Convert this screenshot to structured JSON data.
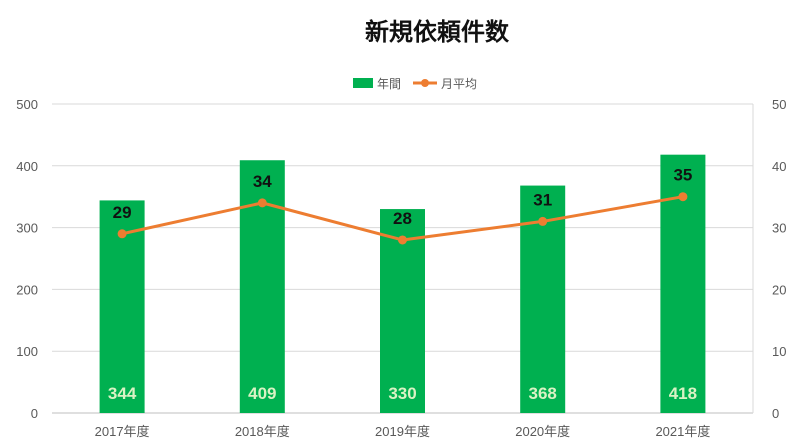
{
  "chart_data": {
    "type": "bar",
    "title": "新規依頼件数",
    "categories": [
      "2017年度",
      "2018年度",
      "2019年度",
      "2020年度",
      "2021年度"
    ],
    "series": [
      {
        "name": "年間",
        "type": "bar",
        "axis": "left",
        "values": [
          344,
          409,
          330,
          368,
          418
        ],
        "color": "#00b050"
      },
      {
        "name": "月平均",
        "type": "line",
        "axis": "right",
        "values": [
          29,
          34,
          28,
          31,
          35
        ],
        "color": "#ed7d31"
      }
    ],
    "y_left": {
      "ylim": [
        0,
        500
      ],
      "ticks": [
        "0",
        "100",
        "200",
        "300",
        "400",
        "500"
      ]
    },
    "y_right": {
      "ylim": [
        0,
        50
      ],
      "ticks": [
        "0",
        "10",
        "20",
        "30",
        "40",
        "50"
      ]
    },
    "grid": true,
    "legend_position": "top-center",
    "colors": {
      "gridline": "#d9d9d9",
      "axis_text": "#595959"
    }
  }
}
